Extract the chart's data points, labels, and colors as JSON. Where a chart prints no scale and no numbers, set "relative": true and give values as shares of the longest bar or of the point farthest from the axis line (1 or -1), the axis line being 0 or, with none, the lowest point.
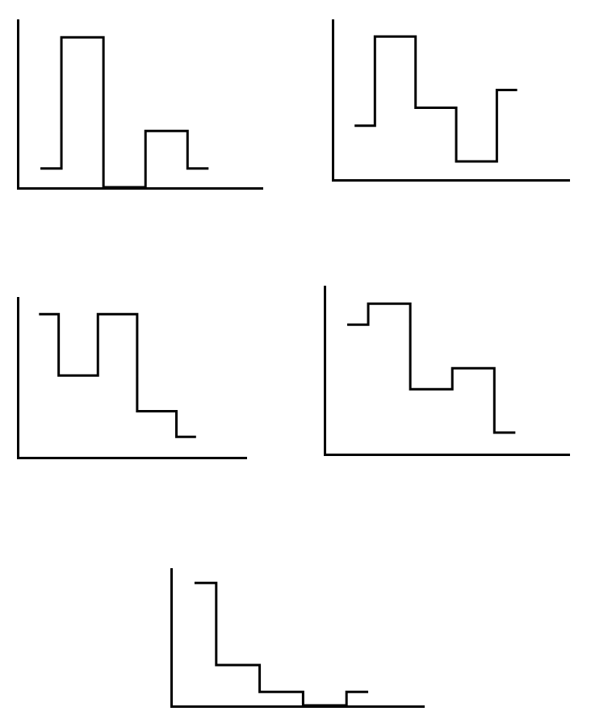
{
  "chart_data": [
    {
      "type": "step",
      "relative": true,
      "categories": [
        null,
        null,
        null,
        null,
        null
      ],
      "values": [
        0.125,
        1,
        0,
        0.375,
        0.125
      ],
      "color": "#000000",
      "grid": false,
      "legend": false
    },
    {
      "type": "step",
      "relative": true,
      "categories": [
        null,
        null,
        null,
        null,
        null
      ],
      "values": [
        0.375,
        1,
        0.5,
        0.125,
        0.625
      ],
      "color": "#000000",
      "grid": false,
      "legend": false
    },
    {
      "type": "step",
      "relative": true,
      "categories": [
        null,
        null,
        null,
        null,
        null
      ],
      "values": [
        1,
        0.57,
        1,
        0.32,
        0.14
      ],
      "color": "#000000",
      "grid": false,
      "legend": false
    },
    {
      "type": "step",
      "relative": true,
      "categories": [
        null,
        null,
        null,
        null,
        null
      ],
      "values": [
        0.86,
        1,
        0.43,
        0.57,
        0.14
      ],
      "color": "#000000",
      "grid": false,
      "legend": false
    },
    {
      "type": "step",
      "relative": true,
      "categories": [
        null,
        null,
        null,
        null,
        null
      ],
      "values": [
        1,
        0.33,
        0.11,
        0,
        0.11
      ],
      "color": "#000000",
      "grid": false,
      "legend": false
    }
  ]
}
